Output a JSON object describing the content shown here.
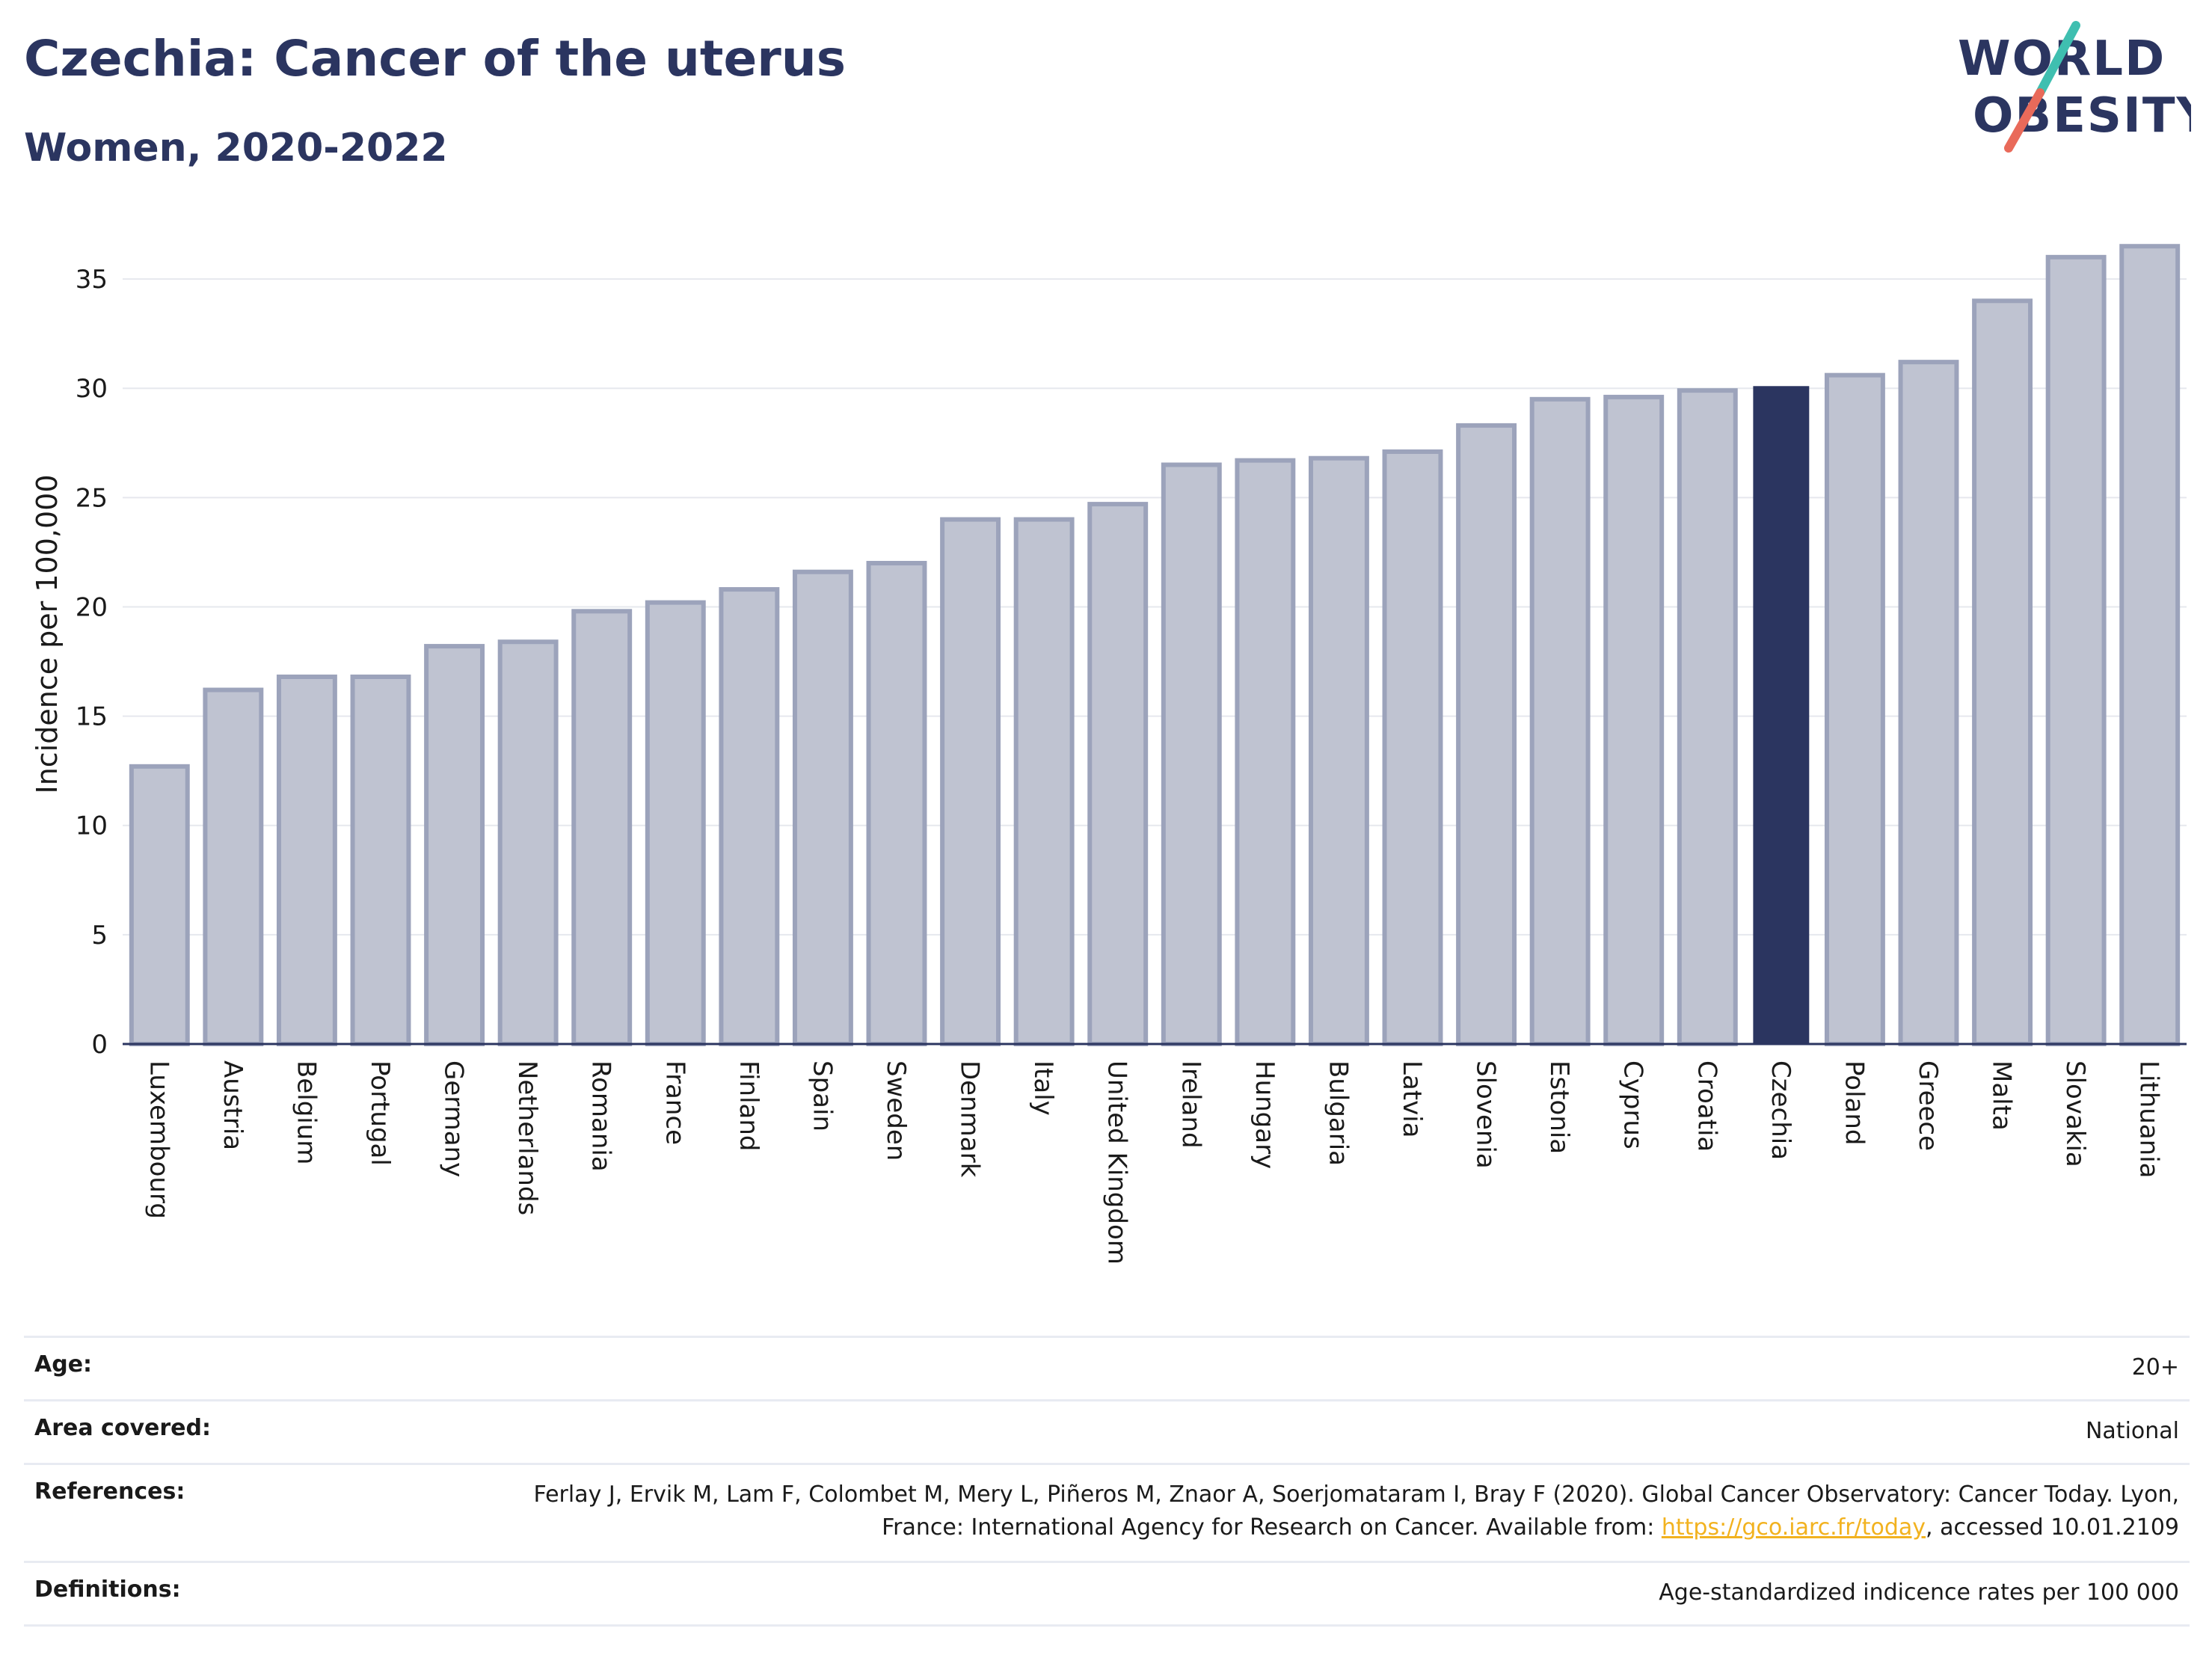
{
  "header": {
    "title": "Czechia: Cancer of the uterus",
    "subtitle": "Women, 2020-2022"
  },
  "logo": {
    "line1": "WORLD",
    "line2": "OBESITY"
  },
  "colors": {
    "bar": "#bfc3d1",
    "bar_border": "#9ca3bb",
    "highlight": "#2b3560",
    "text": "#2b3560",
    "grid": "#e6e8ee",
    "link": "#f2b21f",
    "logo_teal": "#3fbfb0",
    "logo_coral": "#e96a5a"
  },
  "chart_data": {
    "type": "bar",
    "title": "Czechia: Cancer of the uterus",
    "subtitle": "Women, 2020-2022",
    "ylabel": "Incidence per 100,000",
    "xlabel": "",
    "ylim": [
      0,
      37.5
    ],
    "yticks": [
      0,
      5,
      10,
      15,
      20,
      25,
      30,
      35
    ],
    "grid": true,
    "highlight": "Czechia",
    "categories": [
      "Luxembourg",
      "Austria",
      "Belgium",
      "Portugal",
      "Germany",
      "Netherlands",
      "Romania",
      "France",
      "Finland",
      "Spain",
      "Sweden",
      "Denmark",
      "Italy",
      "United Kingdom",
      "Ireland",
      "Hungary",
      "Bulgaria",
      "Latvia",
      "Slovenia",
      "Estonia",
      "Cyprus",
      "Croatia",
      "Czechia",
      "Poland",
      "Greece",
      "Malta",
      "Slovakia",
      "Lithuania"
    ],
    "values": [
      12.7,
      16.2,
      16.8,
      16.8,
      18.2,
      18.4,
      19.8,
      20.2,
      20.8,
      21.6,
      22.0,
      24.0,
      24.0,
      24.7,
      26.5,
      26.7,
      26.8,
      27.1,
      28.3,
      29.5,
      29.6,
      29.9,
      30.1,
      30.6,
      31.2,
      34.0,
      36.0,
      36.5
    ]
  },
  "meta": {
    "age_label": "Age:",
    "age_value": "20+",
    "area_label": "Area covered:",
    "area_value": "National",
    "ref_label": "References:",
    "ref_text_before": "Ferlay J, Ervik M, Lam F, Colombet M, Mery L, Piñeros M, Znaor A, Soerjomataram I, Bray F (2020). Global Cancer Observatory: Cancer Today. Lyon, France: International Agency for Research on Cancer. Available from: ",
    "ref_link": "https://gco.iarc.fr/today",
    "ref_text_after": ", accessed 10.01.2109",
    "def_label": "Definitions:",
    "def_value": "Age-standardized indicence rates per 100 000"
  }
}
